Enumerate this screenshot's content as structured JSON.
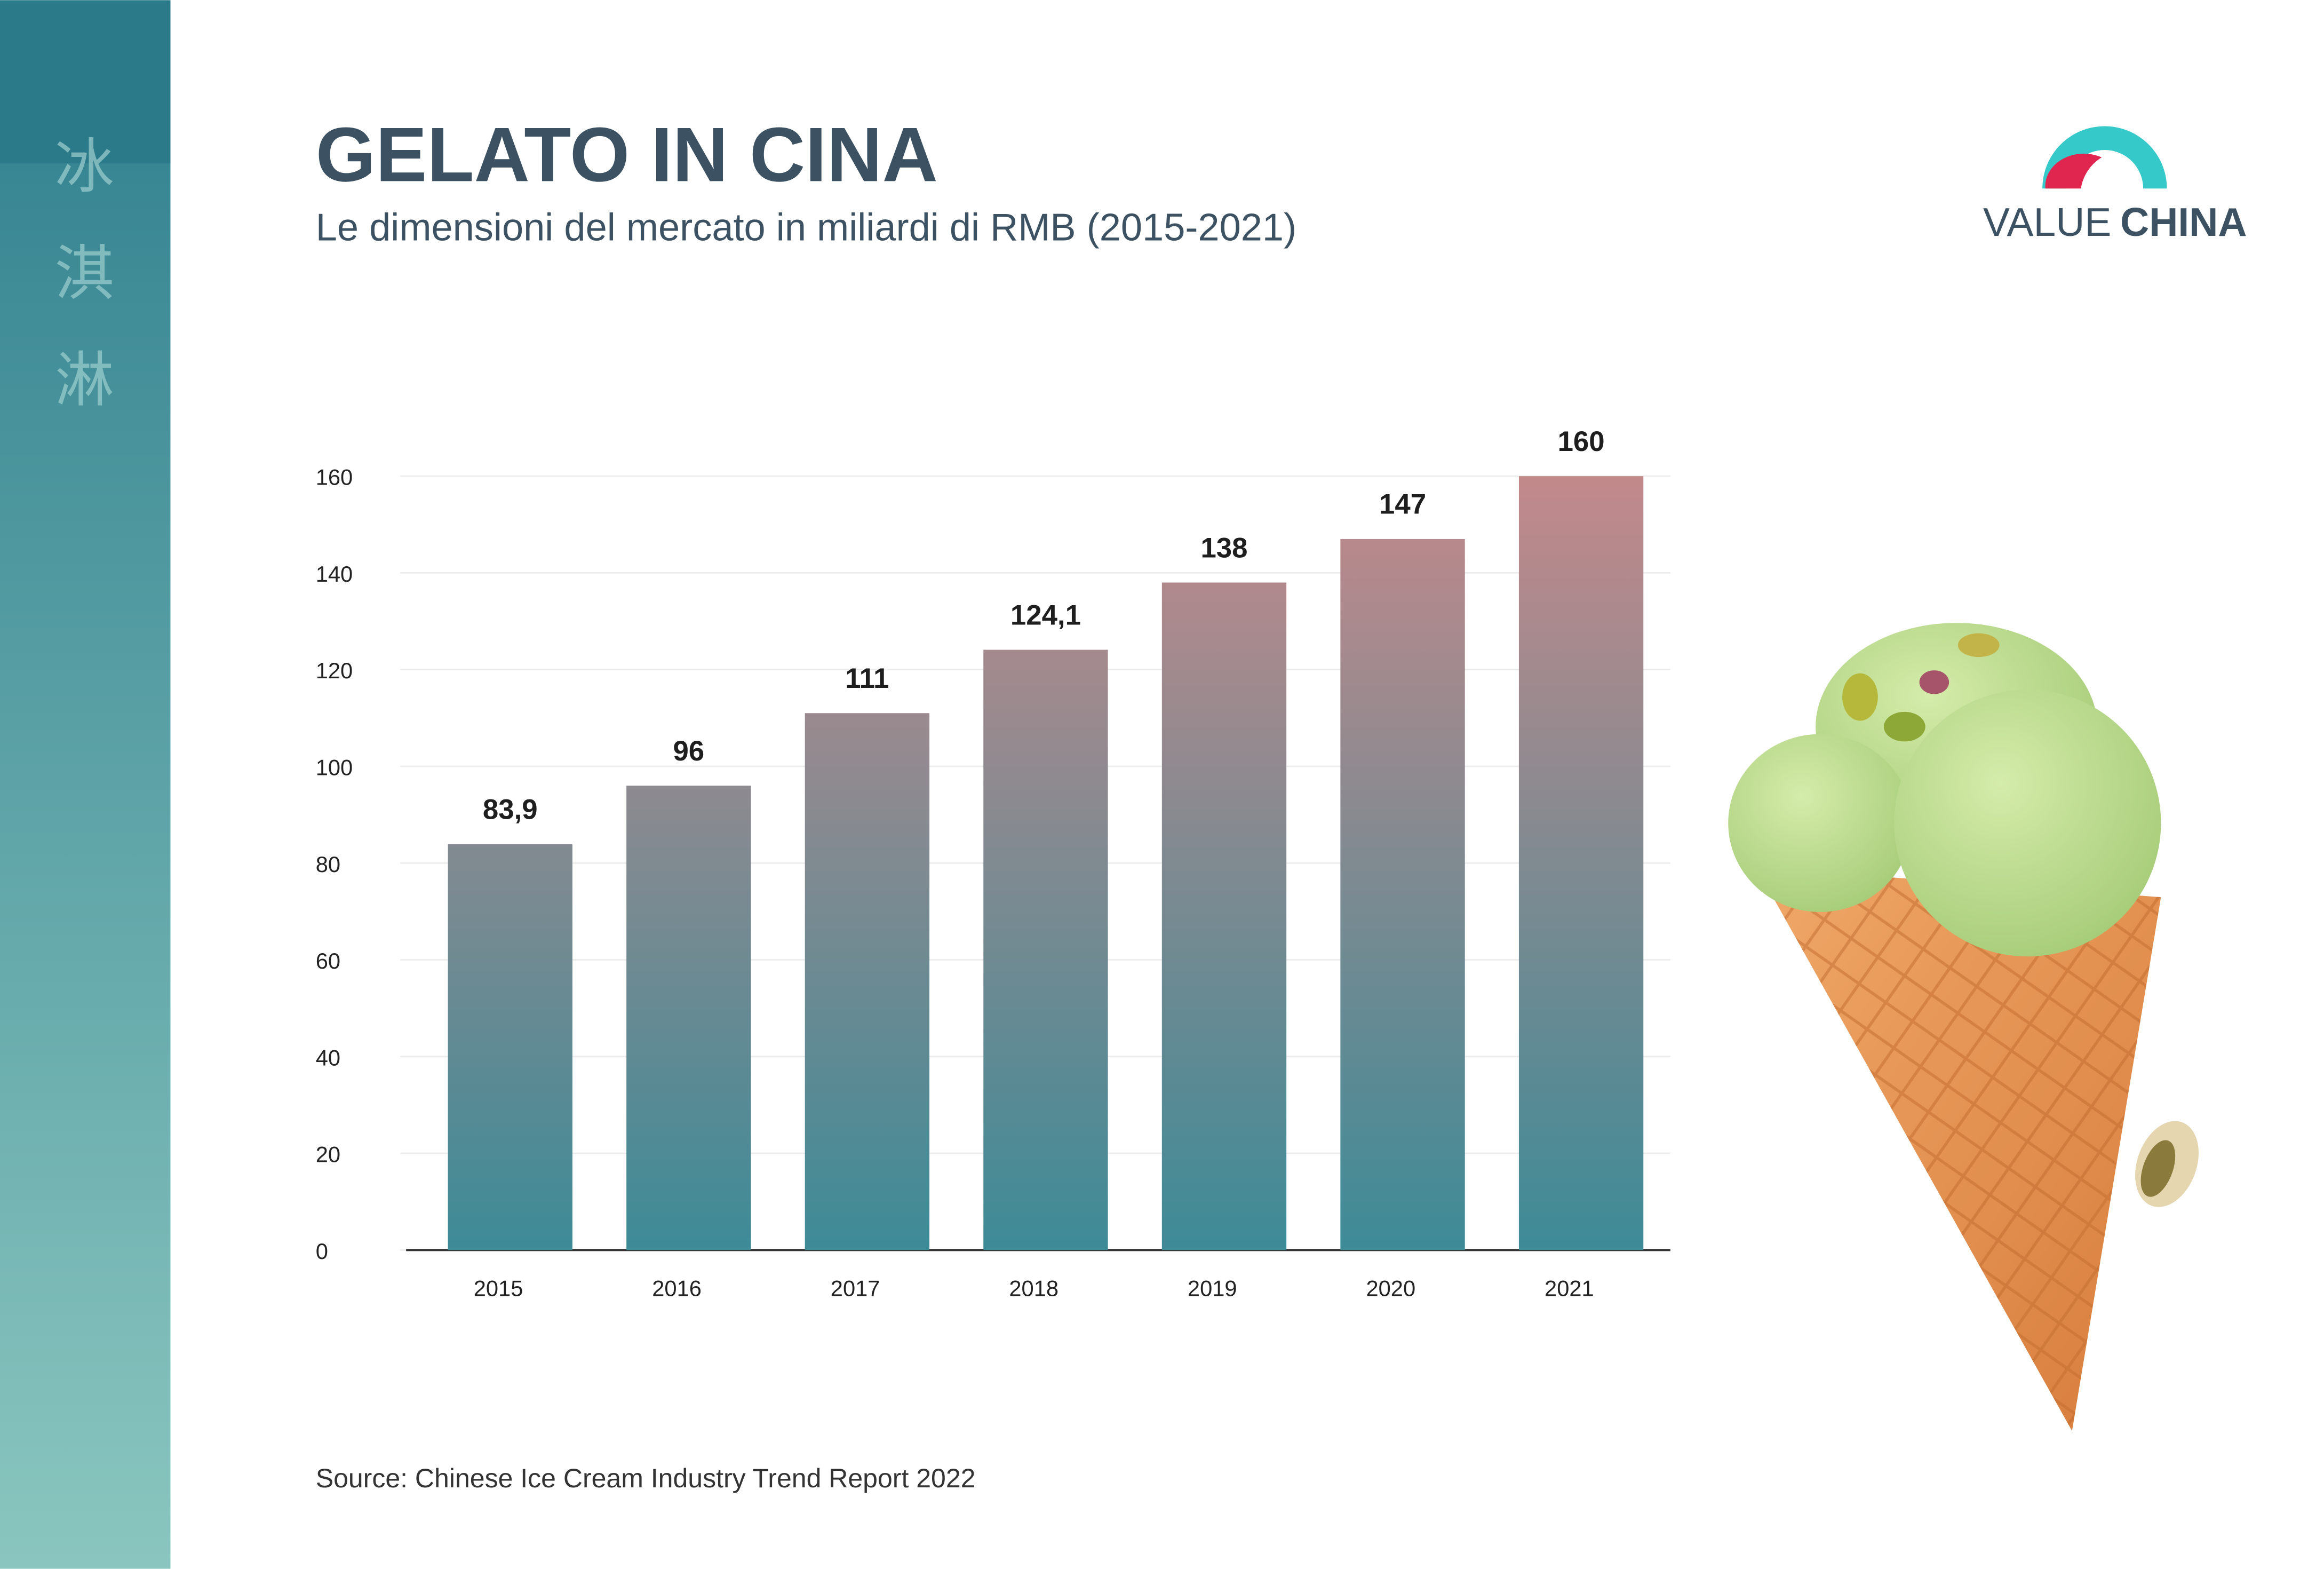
{
  "header": {
    "title": "GELATO IN CINA",
    "subtitle": "Le dimensioni del mercato in miliardi di RMB (2015-2021)"
  },
  "logo": {
    "word1": "VALUE",
    "word2": "CHINA"
  },
  "sidebar": {
    "characters": [
      "冰",
      "淇",
      "淋"
    ]
  },
  "chart_data": {
    "type": "bar",
    "categories": [
      "2015",
      "2016",
      "2017",
      "2018",
      "2019",
      "2020",
      "2021"
    ],
    "values": [
      83.9,
      96,
      111,
      124.1,
      138,
      147,
      160
    ],
    "value_labels": [
      "83,9",
      "96",
      "111",
      "124,1",
      "138",
      "147",
      "160"
    ],
    "gradient": [
      "#3d8b97",
      "#c3898b"
    ],
    "ylim": [
      0,
      160
    ],
    "yticks": [
      0,
      20,
      40,
      60,
      80,
      100,
      120,
      140,
      160
    ],
    "grid": true
  },
  "source": "Source: Chinese Ice Cream Industry Trend Report 2022"
}
